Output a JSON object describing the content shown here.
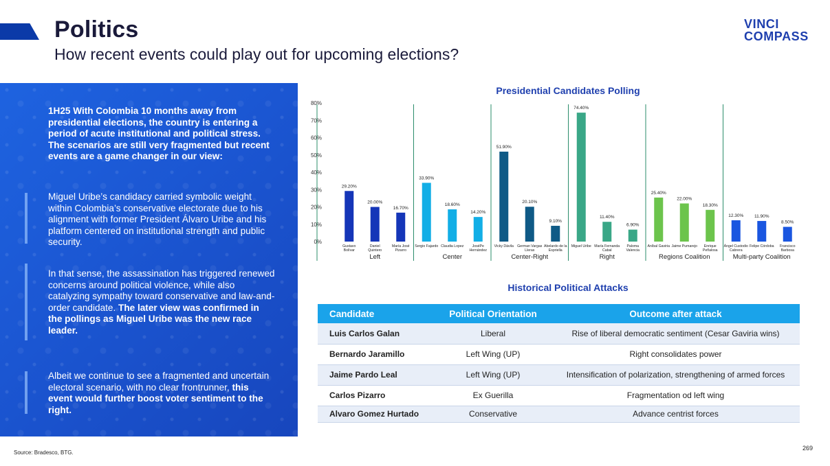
{
  "header": {
    "title": "Politics",
    "subtitle": "How recent events could play out for upcoming elections?",
    "logo_line1": "VINCI",
    "logo_line2": "COMPASS"
  },
  "panel": {
    "block1": "1H25 With Colombia 10 months away from presidential elections, the country is entering a period of acute institutional and political stress. The scenarios are still very fragmented but recent events are a game changer in our view:",
    "block2": "Miguel Uribe’s candidacy carried symbolic weight within Colombia’s conservative electorate due to his alignment with former President Álvaro Uribe and his platform centered on institutional strength and public security.",
    "block3_normal": "In that sense, the assassination has triggered renewed concerns around political violence, while also catalyzing sympathy toward conservative and law-and-order candidate. ",
    "block3_bold": "The later view was confirmed in the pollings as Miguel Uribe was the new race leader.",
    "block4_normal": "Albeit we continue to see a fragmented and uncertain electoral scenario, with no clear frontrunner, ",
    "block4_bold": "this event would further boost voter sentiment to the right."
  },
  "chart_data": {
    "type": "bar",
    "title": "Presidential Candidates Polling",
    "ylim": [
      0,
      80
    ],
    "yticks": [
      "0%",
      "10%",
      "20%",
      "30%",
      "40%",
      "50%",
      "60%",
      "70%",
      "80%"
    ],
    "grid": false,
    "categories": [
      "Gustavo Bolívar",
      "Daniel Quintero",
      "María José Pizarro",
      "Sergio Fajardo",
      "Claudia Lopez",
      "JoséPe Hernández",
      "Vicky Dávila",
      "German Vargas Lleras",
      "Abelardo de la Espriella",
      "Miguel Uribe",
      "María Fernanda Cabal",
      "Paloma Valencia",
      "Aníbal Gaviria",
      "Jaime Pumarejo",
      "Enrique Peñalosa",
      "Ángel Custodio Cabrera",
      "Felipe Córdoba",
      "Francisco Barbosa"
    ],
    "values": [
      29.2,
      20.0,
      16.7,
      33.9,
      18.6,
      14.2,
      51.9,
      20.1,
      9.1,
      74.4,
      11.4,
      6.9,
      25.4,
      22.0,
      18.3,
      12.3,
      11.9,
      8.5
    ],
    "labels": [
      "29.20%",
      "20.00%",
      "16.70%",
      "33.90%",
      "18.60%",
      "14.20%",
      "51.90%",
      "20.10%",
      "9.10%",
      "74.40%",
      "11.40%",
      "6.90%",
      "25.40%",
      "22.00%",
      "18.30%",
      "12.30%",
      "11.90%",
      "8.50%"
    ],
    "groups": [
      {
        "name": "Left",
        "count": 3,
        "color": "#1536b8"
      },
      {
        "name": "Center",
        "count": 3,
        "color": "#12aee6"
      },
      {
        "name": "Center-Right",
        "count": 3,
        "color": "#0f5a86"
      },
      {
        "name": "Right",
        "count": 3,
        "color": "#3aa787"
      },
      {
        "name": "Regions Coalition",
        "count": 3,
        "color": "#6cc44c"
      },
      {
        "name": "Multi-party Coalition",
        "count": 3,
        "color": "#1a56e0"
      }
    ]
  },
  "table": {
    "title": "Historical Political Attacks",
    "headers": [
      "Candidate",
      "Political Orientation",
      "Outcome after attack"
    ],
    "rows": [
      [
        "Luis Carlos Galan",
        "Liberal",
        "Rise of liberal democratic sentiment (Cesar Gaviria wins)"
      ],
      [
        "Bernardo Jaramillo",
        "Left Wing (UP)",
        "Right consolidates power"
      ],
      [
        "Jaime Pardo Leal",
        "Left Wing (UP)",
        "Intensification of polarization, strengthening of armed forces"
      ],
      [
        "Carlos Pizarro",
        "Ex Guerilla",
        "Fragmentation od left wing"
      ],
      [
        "Alvaro Gomez Hurtado",
        "Conservative",
        "Advance centrist forces"
      ]
    ]
  },
  "footer": {
    "source": "Source: Bradesco, BTG.",
    "page": "269"
  }
}
